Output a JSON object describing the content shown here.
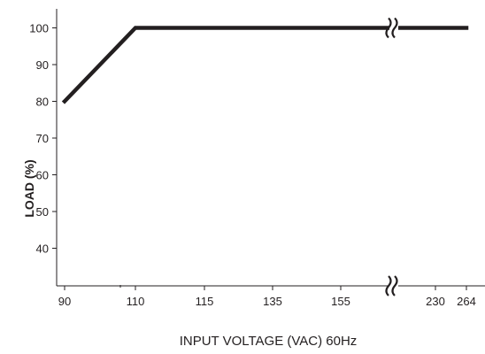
{
  "chart_data": {
    "type": "line",
    "title": "",
    "xlabel": "INPUT VOLTAGE (VAC) 60Hz",
    "ylabel": "LOAD (%)",
    "x_tick_labels": [
      "90",
      "110",
      "115",
      "135",
      "155",
      "230",
      "264"
    ],
    "y_tick_labels": [
      "100",
      "90",
      "80",
      "70",
      "60",
      "50",
      "40"
    ],
    "ylim": [
      30,
      105
    ],
    "x_axis_break": "between 155 and 230",
    "series": [
      {
        "x": [
          90,
          110,
          264
        ],
        "y": [
          80,
          100,
          100
        ]
      }
    ],
    "grid": false,
    "colors": {
      "line": "#231f20",
      "axis": "#231f20"
    }
  }
}
